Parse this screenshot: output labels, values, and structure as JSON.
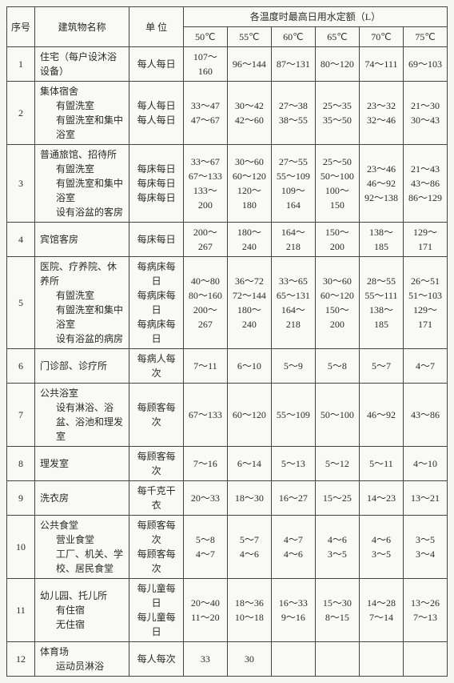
{
  "header": {
    "seq": "序号",
    "name": "建筑物名称",
    "unit": "单 位",
    "group": "各温度时最高日用水定额（L）",
    "temps": [
      "50℃",
      "55℃",
      "60℃",
      "65℃",
      "70℃",
      "75℃"
    ]
  },
  "rows": [
    {
      "n": "1",
      "name": "住宅（每户设沐浴设备）",
      "unit": "每人每日",
      "v": [
        "107～160",
        "96～144",
        "87～131",
        "80～120",
        "74～111",
        "69～103"
      ]
    },
    {
      "n": "2",
      "name": "集体宿舍",
      "lines": [
        {
          "name": "有盥洗室",
          "unit": "每人每日",
          "v": [
            "33～47",
            "30～42",
            "27～38",
            "25～35",
            "23～32",
            "21～30"
          ]
        },
        {
          "name": "有盥洗室和集中浴室",
          "unit": "每人每日",
          "v": [
            "47～67",
            "42～60",
            "38～55",
            "35～50",
            "32～46",
            "30～43"
          ]
        }
      ]
    },
    {
      "n": "3",
      "name": "普通旅馆、招待所",
      "lines": [
        {
          "name": "有盥洗室",
          "unit": "每床每日",
          "v": [
            "33～67",
            "30～60",
            "27～55",
            "25～50",
            "23～46",
            "21～43"
          ]
        },
        {
          "name": "有盥洗室和集中浴室",
          "unit": "每床每日",
          "v": [
            "67～133",
            "60～120",
            "55～109",
            "50～100",
            "46～92",
            "43～86"
          ]
        },
        {
          "name": "设有浴盆的客房",
          "unit": "每床每日",
          "v": [
            "133～200",
            "120～180",
            "109～164",
            "100～150",
            "92～138",
            "86～129"
          ]
        }
      ]
    },
    {
      "n": "4",
      "name": "宾馆客房",
      "unit": "每床每日",
      "v": [
        "200～267",
        "180～240",
        "164～218",
        "150～200",
        "138～185",
        "129～171"
      ]
    },
    {
      "n": "5",
      "name": "医院、疗养院、休养所",
      "lines": [
        {
          "name": "有盥洗室",
          "unit": "每病床每日",
          "v": [
            "40～80",
            "36～72",
            "33～65",
            "30～60",
            "28～55",
            "26～51"
          ]
        },
        {
          "name": "有盥洗室和集中浴室",
          "unit": "每病床每日",
          "v": [
            "80～160",
            "72～144",
            "65～131",
            "60～120",
            "55～111",
            "51～103"
          ]
        },
        {
          "name": "设有浴盆的病房",
          "unit": "每病床每日",
          "v": [
            "200～267",
            "180～240",
            "164～218",
            "150～200",
            "138～185",
            "129～171"
          ]
        }
      ]
    },
    {
      "n": "6",
      "name": "门诊部、诊疗所",
      "unit": "每病人每次",
      "v": [
        "7～11",
        "6～10",
        "5～9",
        "5～8",
        "5～7",
        "4～7"
      ]
    },
    {
      "n": "7",
      "name": "公共浴室",
      "lines": [
        {
          "name": "设有淋浴、浴盆、浴池和理发室",
          "unit": "每顾客每次",
          "v": [
            "67～133",
            "60～120",
            "55～109",
            "50～100",
            "46～92",
            "43～86"
          ]
        }
      ]
    },
    {
      "n": "8",
      "name": "理发室",
      "unit": "每顾客每次",
      "v": [
        "7～16",
        "6～14",
        "5～13",
        "5～12",
        "5～11",
        "4～10"
      ]
    },
    {
      "n": "9",
      "name": "洗衣房",
      "unit": "每千克干衣",
      "v": [
        "20～33",
        "18～30",
        "16～27",
        "15～25",
        "14～23",
        "13～21"
      ]
    },
    {
      "n": "10",
      "name": "公共食堂",
      "lines": [
        {
          "name": "营业食堂",
          "unit": "每顾客每次",
          "v": [
            "5～8",
            "5～7",
            "4～7",
            "4～6",
            "4～6",
            "3～5"
          ]
        },
        {
          "name": "工厂、机关、学校、居民食堂",
          "unit": "每顾客每次",
          "v": [
            "4～7",
            "4～6",
            "4～6",
            "3～5",
            "3～5",
            "3～4"
          ]
        }
      ]
    },
    {
      "n": "11",
      "name": "幼儿园、托儿所",
      "lines": [
        {
          "name": "有住宿",
          "unit": "每儿童每日",
          "v": [
            "20～40",
            "18～36",
            "16～33",
            "15～30",
            "14～28",
            "13～26"
          ]
        },
        {
          "name": "无住宿",
          "unit": "每儿童每日",
          "v": [
            "11～20",
            "10～18",
            "9～16",
            "8～15",
            "7～14",
            "7～13"
          ]
        }
      ]
    },
    {
      "n": "12",
      "name": "体育场",
      "lines": [
        {
          "name": "运动员淋浴",
          "unit": "每人每次",
          "v": [
            "33",
            "30",
            "",
            "",
            "",
            ""
          ]
        }
      ]
    }
  ]
}
